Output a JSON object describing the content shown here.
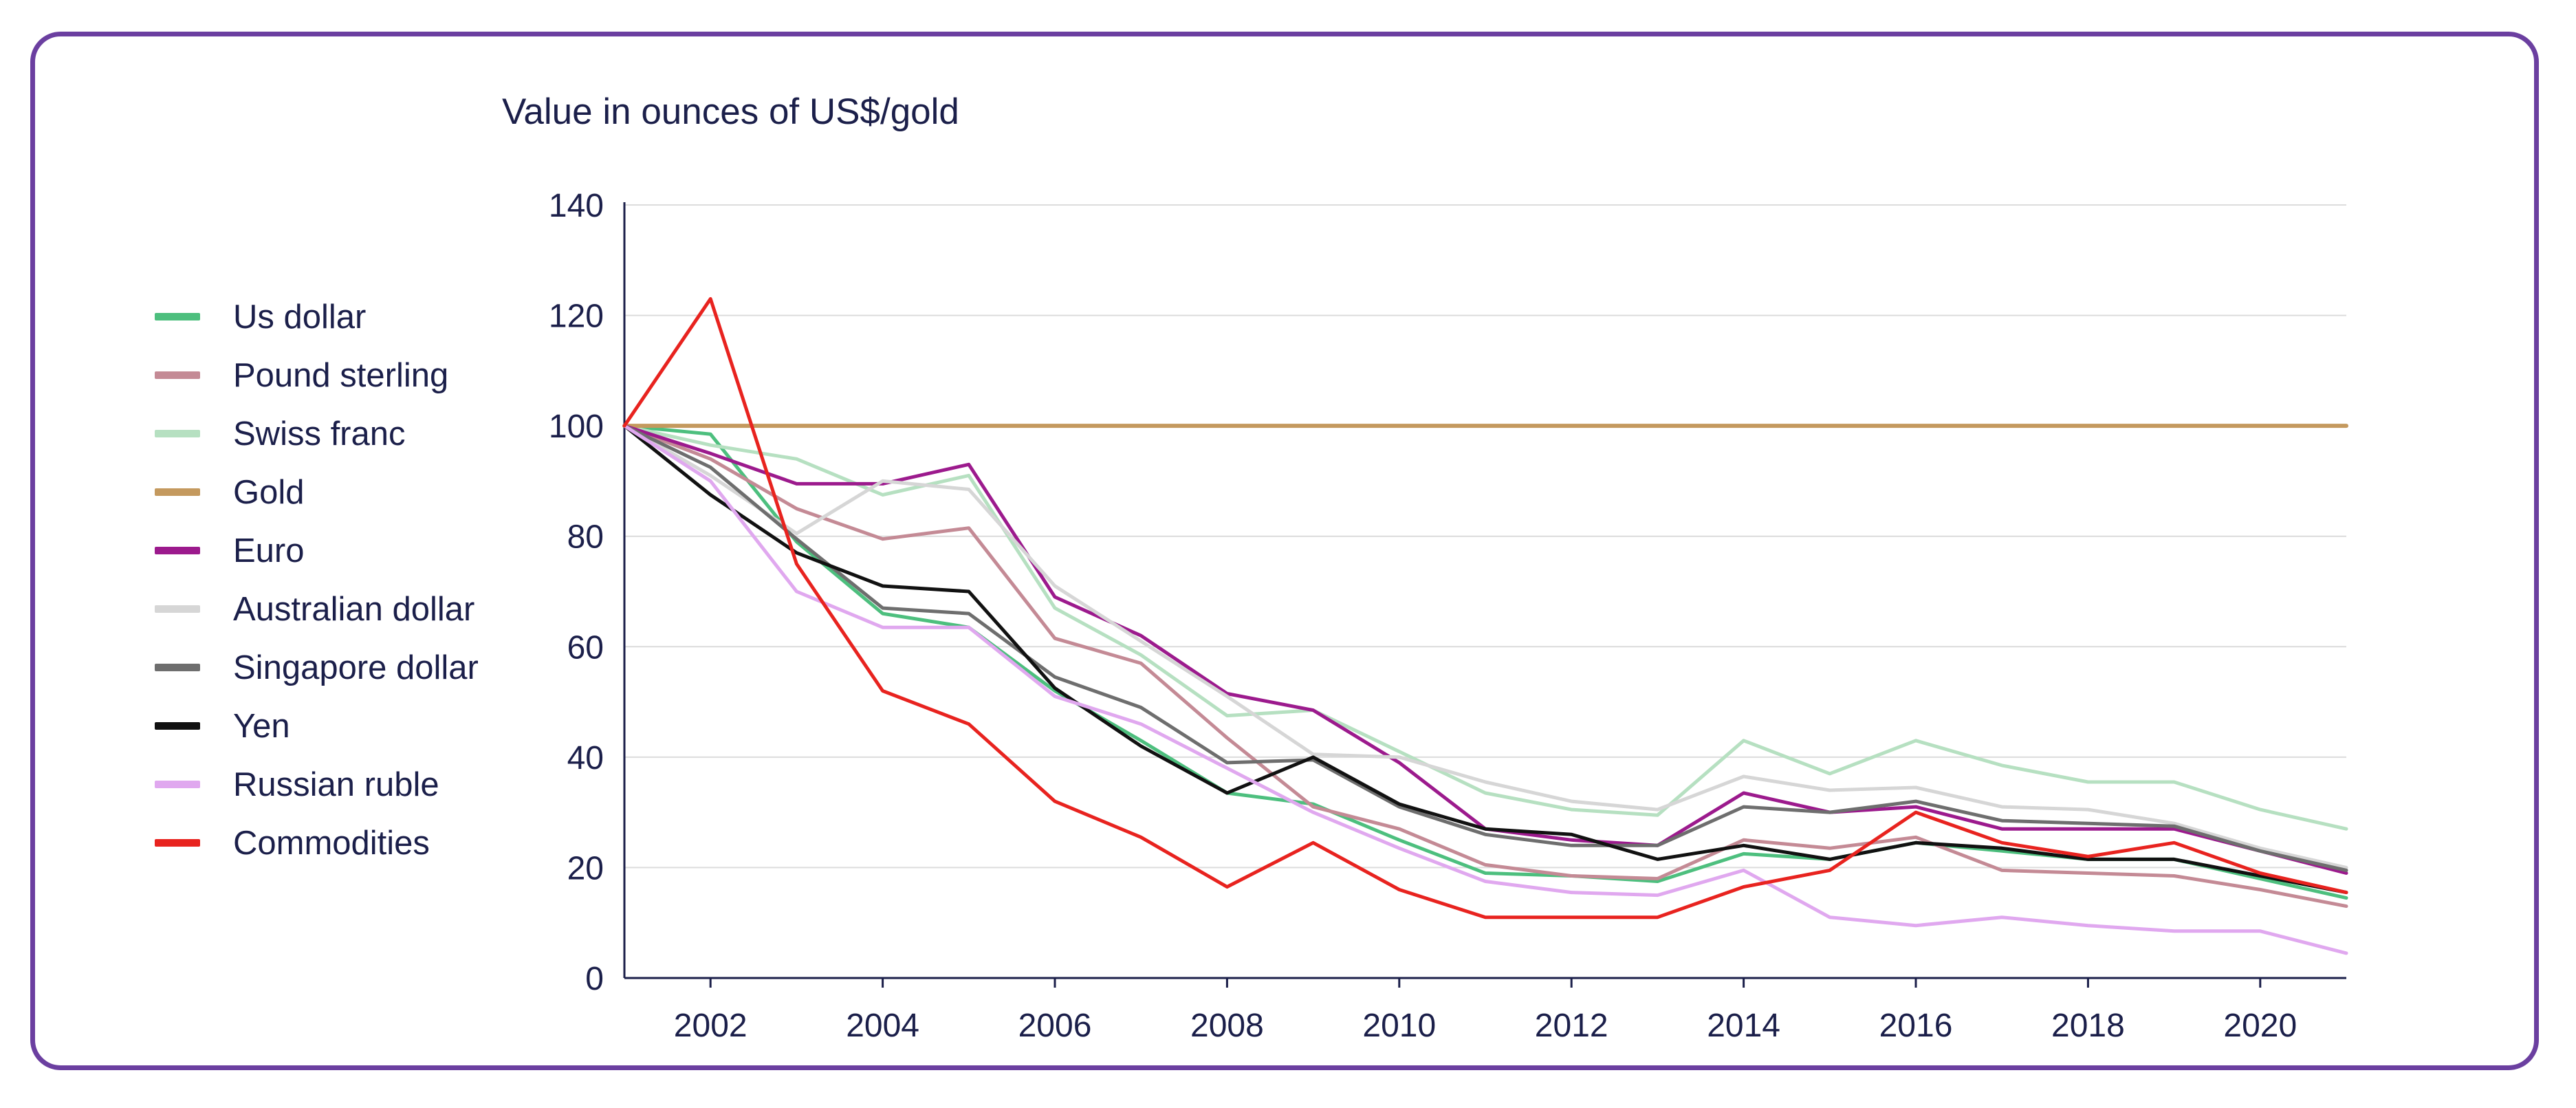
{
  "chart_data": {
    "type": "line",
    "title": "",
    "xlabel": "",
    "ylabel": "Value in ounces of US$/gold",
    "ylim": [
      0,
      140
    ],
    "xlim": [
      2001,
      2021
    ],
    "y_ticks": [
      0,
      20,
      40,
      60,
      80,
      100,
      120,
      140
    ],
    "x_ticks": [
      2002,
      2004,
      2006,
      2008,
      2010,
      2012,
      2014,
      2016,
      2018,
      2020
    ],
    "grid": "horizontal",
    "legend_position": "left",
    "x": [
      2001,
      2002,
      2003,
      2004,
      2005,
      2006,
      2007,
      2008,
      2009,
      2010,
      2011,
      2012,
      2013,
      2014,
      2015,
      2016,
      2017,
      2018,
      2019,
      2020,
      2021
    ],
    "series": [
      {
        "name": "Us dollar",
        "color": "#4dbf7e",
        "values": [
          100,
          98.5,
          79,
          66,
          63.5,
          52,
          43,
          33.5,
          31.5,
          25,
          19,
          18.5,
          17.5,
          22.5,
          21.5,
          24.5,
          23,
          21.5,
          21.5,
          18,
          14.5
        ]
      },
      {
        "name": "Pound sterling",
        "color": "#c48a95",
        "values": [
          100,
          94,
          85,
          79.5,
          81.5,
          61.5,
          57,
          43.5,
          31,
          27,
          20.5,
          18.5,
          18,
          25,
          23.5,
          25.5,
          19.5,
          19,
          18.5,
          16,
          13
        ]
      },
      {
        "name": "Swiss franc",
        "color": "#b6e0c1",
        "values": [
          100,
          96.5,
          94,
          87.5,
          91,
          67,
          58.5,
          47.5,
          48.5,
          41,
          33.5,
          30.5,
          29.5,
          43,
          37,
          43,
          38.5,
          35.5,
          35.5,
          30.5,
          27
        ]
      },
      {
        "name": "Gold",
        "color": "#c4995e",
        "values": [
          100,
          100,
          100,
          100,
          100,
          100,
          100,
          100,
          100,
          100,
          100,
          100,
          100,
          100,
          100,
          100,
          100,
          100,
          100,
          100,
          100
        ]
      },
      {
        "name": "Euro",
        "color": "#9c1a8d",
        "values": [
          100,
          95,
          89.5,
          89.5,
          93,
          69,
          62,
          51.5,
          48.5,
          39,
          27,
          25,
          24,
          33.5,
          30,
          31,
          27,
          27,
          27,
          23,
          19
        ]
      },
      {
        "name": "Australian dollar",
        "color": "#d6d6d6",
        "values": [
          100,
          91,
          80.5,
          90,
          88.5,
          71,
          61,
          51,
          40.5,
          40,
          35.5,
          32,
          30.5,
          36.5,
          34,
          34.5,
          31,
          30.5,
          28,
          23.5,
          20
        ]
      },
      {
        "name": "Singapore dollar",
        "color": "#6e6e6e",
        "values": [
          100,
          92.5,
          79.5,
          67,
          66,
          54.5,
          49,
          39,
          39.5,
          31,
          26,
          24,
          24,
          31,
          30,
          32,
          28.5,
          28,
          27.5,
          23,
          19.5
        ]
      },
      {
        "name": "Yen",
        "color": "#111111",
        "values": [
          100,
          87.5,
          77,
          71,
          70,
          52.5,
          42,
          33.5,
          40,
          31.5,
          27,
          26,
          21.5,
          24,
          21.5,
          24.5,
          23.5,
          21.5,
          21.5,
          18.5,
          15.5
        ]
      },
      {
        "name": "Russian ruble",
        "color": "#e0a8ef",
        "values": [
          100,
          90,
          70,
          63.5,
          63.5,
          51,
          46,
          38,
          30,
          23.5,
          17.5,
          15.5,
          15,
          19.5,
          11,
          9.5,
          11,
          9.5,
          8.5,
          8.5,
          4.5
        ]
      },
      {
        "name": "Commodities",
        "color": "#e8231f",
        "values": [
          100,
          123,
          75,
          52,
          46,
          32,
          25.5,
          16.5,
          24.5,
          16,
          11,
          11,
          11,
          16.5,
          19.5,
          30,
          24.5,
          22,
          24.5,
          19,
          15.5
        ]
      }
    ]
  }
}
